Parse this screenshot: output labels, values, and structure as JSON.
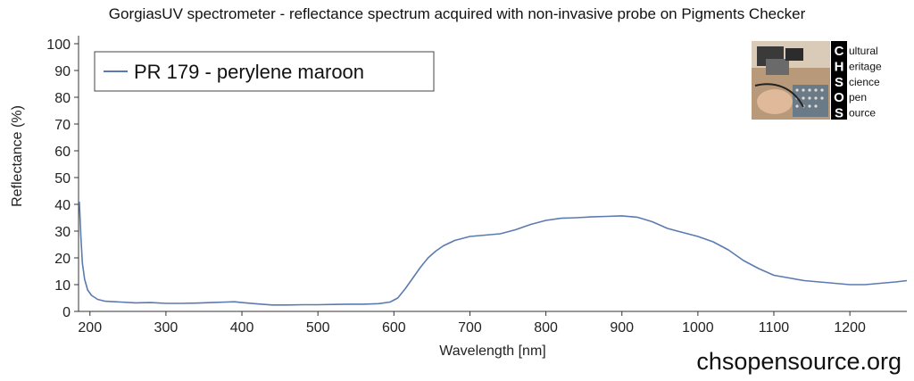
{
  "title": "GorgiasUV spectrometer - reflectance spectrum acquired with non-invasive probe on Pigments Checker",
  "footer": "chsopensource.org",
  "logo": {
    "letters": [
      "C",
      "H",
      "S",
      "O",
      "S"
    ],
    "words": [
      "ultural",
      "eritage",
      "cience",
      "pen",
      "ource"
    ]
  },
  "colors": {
    "series": "#5b7bb0",
    "axis": "#333333",
    "logo_bar": "#000000"
  },
  "chart_data": {
    "type": "line",
    "xlabel": "Wavelength [nm]",
    "ylabel": "Reflectance (%)",
    "xlim": [
      185,
      1275
    ],
    "ylim": [
      0,
      103
    ],
    "x_ticks": [
      200,
      300,
      400,
      500,
      600,
      700,
      800,
      900,
      1000,
      1100,
      1200
    ],
    "y_ticks": [
      0,
      10,
      20,
      30,
      40,
      50,
      60,
      70,
      80,
      90,
      100
    ],
    "grid": false,
    "legend_position": "top-left",
    "series": [
      {
        "name": "PR 179 - perylene maroon",
        "x": [
          186,
          188,
          190,
          193,
          197,
          202,
          210,
          220,
          240,
          260,
          280,
          300,
          320,
          340,
          360,
          380,
          390,
          400,
          420,
          440,
          460,
          480,
          500,
          520,
          540,
          560,
          580,
          595,
          605,
          615,
          625,
          635,
          645,
          655,
          665,
          680,
          700,
          720,
          740,
          760,
          780,
          800,
          820,
          840,
          860,
          880,
          900,
          920,
          940,
          960,
          980,
          1000,
          1020,
          1040,
          1060,
          1080,
          1100,
          1120,
          1140,
          1160,
          1180,
          1200,
          1220,
          1240,
          1260,
          1275
        ],
        "y": [
          41,
          28,
          18,
          12,
          8,
          6,
          4.5,
          3.8,
          3.5,
          3.2,
          3.3,
          3.0,
          3.0,
          3.1,
          3.3,
          3.5,
          3.6,
          3.3,
          2.8,
          2.4,
          2.4,
          2.5,
          2.5,
          2.6,
          2.7,
          2.7,
          2.9,
          3.5,
          5.0,
          8.5,
          12.5,
          16.5,
          20.0,
          22.5,
          24.5,
          26.5,
          28.0,
          28.5,
          29.0,
          30.5,
          32.5,
          34.0,
          34.8,
          35.0,
          35.3,
          35.5,
          35.7,
          35.2,
          33.5,
          31.0,
          29.5,
          28.0,
          26.0,
          23.0,
          19.0,
          16.0,
          13.5,
          12.5,
          11.5,
          11.0,
          10.5,
          10.0,
          10.0,
          10.5,
          11.0,
          11.5
        ]
      }
    ]
  }
}
